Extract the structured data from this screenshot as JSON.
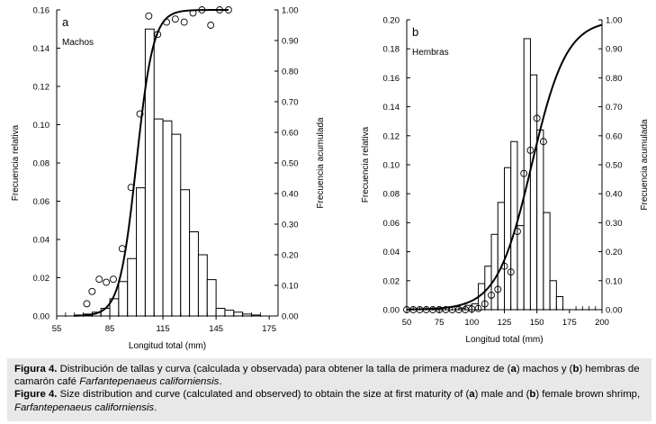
{
  "chart_data": [
    {
      "type": "bar",
      "panel_letter": "a",
      "panel_label": "Machos",
      "xlabel": "Longitud total (mm)",
      "ylabel": "Frecuencia relativa",
      "y2label": "Frecuencia acumulada",
      "x_ticks": [
        "55",
        "85",
        "115",
        "145",
        "175"
      ],
      "x_range": [
        55,
        180
      ],
      "ylim": [
        0,
        0.16
      ],
      "y_ticks": [
        "0.00",
        "0.02",
        "0.04",
        "0.06",
        "0.08",
        "0.10",
        "0.12",
        "0.14",
        "0.16"
      ],
      "y2lim": [
        0,
        1
      ],
      "y2_ticks": [
        "0.00",
        "0.10",
        "0.20",
        "0.30",
        "0.40",
        "0.50",
        "0.60",
        "0.70",
        "0.80",
        "0.90",
        "1.00"
      ],
      "bin_width": 5,
      "bins_start": [
        65,
        70,
        75,
        80,
        85,
        90,
        95,
        100,
        105,
        110,
        115,
        120,
        125,
        130,
        135,
        140,
        145,
        150,
        155,
        160,
        165
      ],
      "values": [
        0.0005,
        0.001,
        0.002,
        0.004,
        0.009,
        0.018,
        0.03,
        0.067,
        0.15,
        0.103,
        0.102,
        0.095,
        0.066,
        0.044,
        0.032,
        0.019,
        0.004,
        0.003,
        0.002,
        0.001,
        0.0005
      ],
      "observed_cumulative": {
        "x": [
          72,
          75,
          79,
          83,
          87,
          92,
          97,
          102,
          107,
          112,
          117,
          122,
          127,
          132,
          137,
          142,
          147,
          152
        ],
        "y": [
          0.04,
          0.08,
          0.12,
          0.11,
          0.12,
          0.22,
          0.42,
          0.66,
          0.98,
          0.92,
          0.96,
          0.97,
          0.96,
          0.99,
          1.0,
          0.95,
          1.0,
          1.0
        ]
      },
      "fitted_curve": {
        "L50": 100,
        "k": 0.21,
        "x_start": 65,
        "x_end": 152
      }
    },
    {
      "type": "bar",
      "panel_letter": "b",
      "panel_label": "Hembras",
      "xlabel": "Longitud total (mm)",
      "ylabel": "Frecuencia relativa",
      "y2label": "Frecuencia acumulada",
      "x_ticks": [
        "50",
        "75",
        "100",
        "125",
        "150",
        "175",
        "200"
      ],
      "x_range": [
        50,
        200
      ],
      "ylim": [
        0,
        0.2
      ],
      "y_ticks": [
        "0.00",
        "0.02",
        "0.04",
        "0.06",
        "0.08",
        "0.10",
        "0.12",
        "0.14",
        "0.16",
        "0.18",
        "0.20"
      ],
      "y2lim": [
        0,
        1
      ],
      "y2_ticks": [
        "0.00",
        "0.10",
        "0.20",
        "0.30",
        "0.40",
        "0.50",
        "0.60",
        "0.70",
        "0.80",
        "0.90",
        "1.00"
      ],
      "bin_width": 5,
      "bins_start": [
        90,
        95,
        100,
        105,
        110,
        115,
        120,
        125,
        130,
        135,
        140,
        145,
        150,
        155,
        160,
        165
      ],
      "values": [
        0.001,
        0.003,
        0.004,
        0.018,
        0.03,
        0.052,
        0.074,
        0.098,
        0.116,
        0.058,
        0.187,
        0.162,
        0.124,
        0.067,
        0.02,
        0.009
      ],
      "observed_cumulative": {
        "x": [
          50,
          55,
          60,
          65,
          70,
          75,
          80,
          85,
          90,
          95,
          100,
          105,
          110,
          115,
          120,
          125,
          130,
          135,
          140,
          145,
          150,
          155
        ],
        "y": [
          0,
          0,
          0,
          0,
          0,
          0,
          0,
          0,
          0,
          0,
          0.002,
          0.004,
          0.02,
          0.05,
          0.07,
          0.15,
          0.13,
          0.27,
          0.47,
          0.55,
          0.66,
          0.58
        ]
      },
      "fitted_curve": {
        "L50": 146,
        "k": 0.075,
        "x_start": 50,
        "x_end": 200
      }
    }
  ],
  "caption": {
    "es_label": "Figura 4.",
    "es_text_1": " Distribución de tallas y curva (calculada y observada) para obtener la talla de primera madurez de (",
    "es_a": "a",
    "es_text_2": ") machos y (",
    "es_b": "b",
    "es_text_3": ") hembras de",
    "es_text_4": "camarón café ",
    "es_species": "Farfantepenaeus californiensis",
    "es_end": ".",
    "en_label": "Figure 4.",
    "en_text_1": " Size distribution and curve (calculated and observed) to obtain the size at first maturity of (",
    "en_a": "a",
    "en_text_2": ") male and (",
    "en_b": "b",
    "en_text_3": ") female brown shrimp,",
    "en_species": "Farfantepenaeus californiensis",
    "en_end": "."
  }
}
